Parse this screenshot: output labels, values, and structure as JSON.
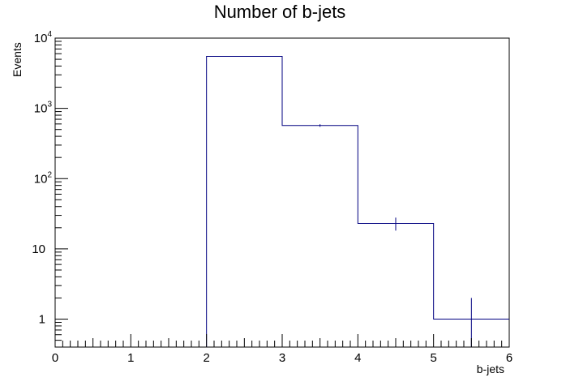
{
  "chart_data": {
    "type": "histogram",
    "title": "Number of b-jets",
    "xlabel": "b-jets",
    "ylabel": "Events",
    "xlim": [
      0,
      6
    ],
    "ylim": [
      0.4,
      10000
    ],
    "yscale": "log",
    "bins": [
      {
        "low": 0,
        "high": 1,
        "value": 0
      },
      {
        "low": 1,
        "high": 2,
        "value": 0
      },
      {
        "low": 2,
        "high": 3,
        "value": 5500
      },
      {
        "low": 3,
        "high": 4,
        "value": 570
      },
      {
        "low": 4,
        "high": 5,
        "value": 23
      },
      {
        "low": 5,
        "high": 6,
        "value": 1
      }
    ],
    "errors": [
      0,
      0,
      74,
      24,
      4.8,
      1
    ],
    "x_ticks": [
      "0",
      "1",
      "2",
      "3",
      "4",
      "5",
      "6"
    ],
    "y_ticks": [
      {
        "value": 1,
        "label": "1"
      },
      {
        "value": 10,
        "label": "10"
      },
      {
        "value": 100,
        "base": "10",
        "exp": "2"
      },
      {
        "value": 1000,
        "base": "10",
        "exp": "3"
      },
      {
        "value": 10000,
        "base": "10",
        "exp": "4"
      }
    ],
    "line_color": "#000080",
    "legend": "none",
    "grid": false
  }
}
